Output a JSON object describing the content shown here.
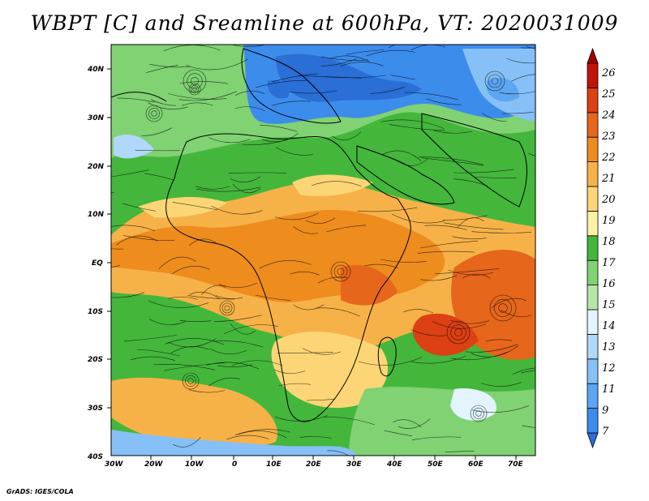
{
  "title": "WBPT [C] and Sreamline at 600hPa, VT: 2020031009",
  "credit": "GrADS: IGES/COLA",
  "map": {
    "lat_labels": [
      "40N",
      "30N",
      "20N",
      "10N",
      "EQ",
      "10S",
      "20S",
      "30S",
      "40S"
    ],
    "lon_labels": [
      "30W",
      "20W",
      "10W",
      "0",
      "10E",
      "20E",
      "30E",
      "40E",
      "50E",
      "60E",
      "70E"
    ],
    "lon_range": [
      -30,
      75
    ],
    "lat_range": [
      -40,
      45
    ]
  },
  "colorbar": {
    "labels": [
      "7",
      "9",
      "11",
      "12",
      "13",
      "14",
      "15",
      "16",
      "17",
      "18",
      "19",
      "20",
      "21",
      "22",
      "23",
      "24",
      "25",
      "26"
    ],
    "colors": [
      "#2a6ed6",
      "#3c8cec",
      "#5ca6f2",
      "#86c0f6",
      "#b0d8fa",
      "#e2f4fe",
      "#b6e6a6",
      "#80d273",
      "#44b63c",
      "#fff0a6",
      "#fcd676",
      "#f6b248",
      "#ee8c1e",
      "#e6661c",
      "#dc4014",
      "#c01408",
      "#a00000"
    ]
  }
}
